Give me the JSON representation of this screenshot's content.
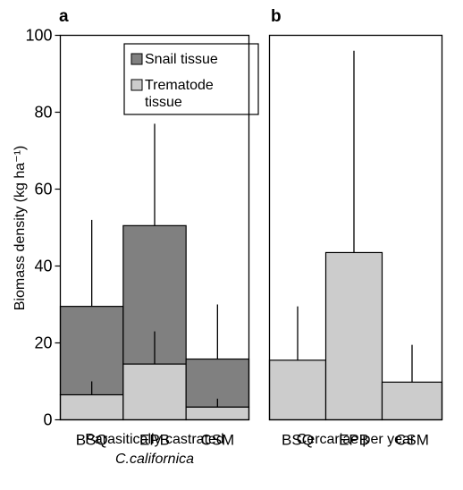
{
  "chart_data": [
    {
      "panel": "a",
      "type": "bar",
      "stacked": true,
      "categories": [
        "BSQ",
        "EPB",
        "CSM"
      ],
      "series": [
        {
          "name": "Snail tissue",
          "color": "#808080",
          "values": [
            23,
            36,
            12.5
          ],
          "error_upper": [
            52,
            77,
            30
          ]
        },
        {
          "name": "Trematode tissue",
          "color": "#cccccc",
          "values": [
            6.5,
            14.5,
            3.3
          ],
          "error_upper": [
            10,
            23,
            5.5
          ]
        }
      ],
      "ylabel": "Biomass density (kg ha⁻¹)",
      "xlabel_lines": [
        "Parasitically castrated",
        "C.californica"
      ],
      "ylim": [
        0,
        100
      ],
      "yticks": [
        0,
        20,
        40,
        60,
        80,
        100
      ],
      "legend": "top-right"
    },
    {
      "panel": "b",
      "type": "bar",
      "categories": [
        "BSQ",
        "EPB",
        "CSM"
      ],
      "series": [
        {
          "color": "#cccccc",
          "values": [
            15.5,
            43.5,
            9.8
          ],
          "error_upper": [
            29.5,
            96,
            19.5
          ]
        }
      ],
      "xlabel_lines": [
        "Cercariae per year"
      ],
      "ylim": [
        0,
        100
      ]
    }
  ],
  "colors": {
    "snail": "#808080",
    "trematode": "#cccccc"
  }
}
